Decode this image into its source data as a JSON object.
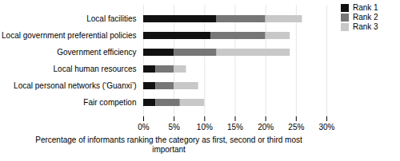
{
  "chart_data": {
    "type": "bar",
    "orientation": "horizontal",
    "stacked": true,
    "categories": [
      "Local facilities",
      "Local government preferential policies",
      "Government efficiency",
      "Local human resources",
      "Local personal networks (‘Guanxi’)",
      "Fair competion"
    ],
    "series": [
      {
        "name": "Rank 1",
        "color": "#111111",
        "values": [
          12,
          11,
          5,
          2,
          2,
          2
        ]
      },
      {
        "name": "Rank 2",
        "color": "#767676",
        "values": [
          8,
          9,
          7,
          3,
          3,
          4
        ]
      },
      {
        "name": "Rank 3",
        "color": "#c8c8c8",
        "values": [
          6,
          4,
          12,
          2,
          4,
          4
        ]
      }
    ],
    "xlabel": "Percentage of informants ranking the category as first, second or third most\nimportant",
    "xlim": [
      0,
      30
    ],
    "xticks": [
      {
        "value": 0,
        "label": "0%"
      },
      {
        "value": 5,
        "label": "5%"
      },
      {
        "value": 10,
        "label": "10%"
      },
      {
        "value": 15,
        "label": "15%"
      },
      {
        "value": 20,
        "label": "20%"
      },
      {
        "value": 25,
        "label": "25%"
      },
      {
        "value": 30,
        "label": "30%"
      }
    ],
    "grid": true,
    "legend": "right"
  }
}
